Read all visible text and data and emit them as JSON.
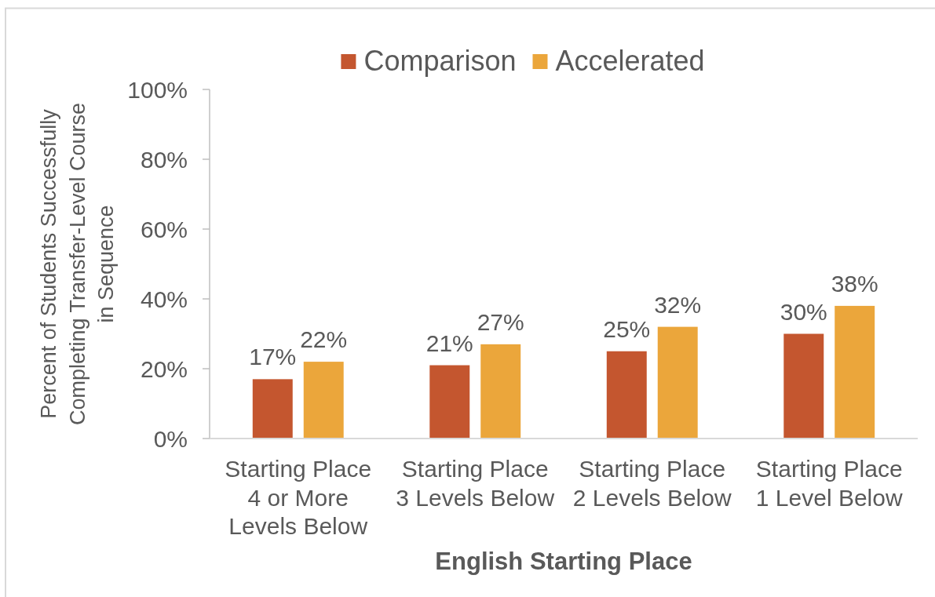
{
  "chart_data": {
    "type": "bar",
    "categories": [
      "Starting Place 4 or More Levels Below",
      "Starting Place 3 Levels Below",
      "Starting Place 2 Levels Below",
      "Starting Place 1 Level Below"
    ],
    "series": [
      {
        "name": "Comparison",
        "color": "#c4562f",
        "values": [
          17,
          21,
          25,
          30
        ],
        "value_labels": [
          "17%",
          "21%",
          "25%",
          "30%"
        ]
      },
      {
        "name": "Accelerated",
        "color": "#eba63b",
        "values": [
          22,
          27,
          32,
          38
        ],
        "value_labels": [
          "22%",
          "27%",
          "32%",
          "38%"
        ]
      }
    ],
    "xlabel": "English Starting Place",
    "ylabel": "Percent of Students Successfully Completing Transfer-Level Course in Sequence",
    "ylim": [
      0,
      100
    ],
    "yticks": [
      {
        "value": 0,
        "label": "0%"
      },
      {
        "value": 20,
        "label": "20%"
      },
      {
        "value": 40,
        "label": "40%"
      },
      {
        "value": 60,
        "label": "60%"
      },
      {
        "value": 80,
        "label": "80%"
      },
      {
        "value": 100,
        "label": "100%"
      }
    ],
    "legend": "top"
  }
}
